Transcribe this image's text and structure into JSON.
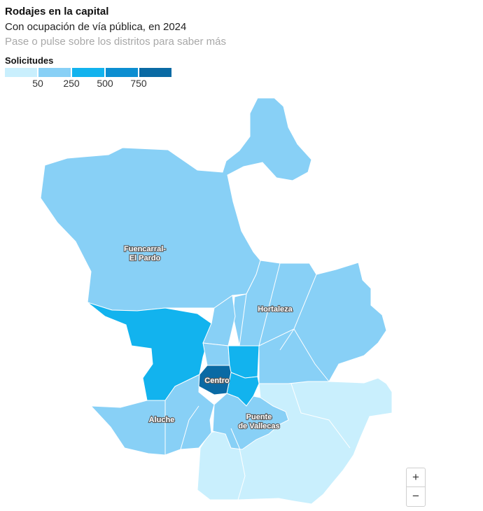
{
  "header": {
    "title": "Rodajes en la capital",
    "subtitle": "Con ocupación de vía pública, en 2024",
    "hint": "Pase o pulse sobre los distritos para saber más"
  },
  "legend": {
    "title": "Solicitudes",
    "colors": [
      "#c9effd",
      "#88d0f6",
      "#12b3ee",
      "#0c8ed1",
      "#0a6aa4"
    ],
    "ticks": [
      "50",
      "250",
      "500",
      "750"
    ]
  },
  "districts": [
    {
      "id": "fuencarral",
      "label_line1": "Fuencarral-",
      "label_line2": "El Pardo",
      "color": "#88d0f6"
    },
    {
      "id": "hortaleza",
      "label": "Hortaleza",
      "color": "#88d0f6"
    },
    {
      "id": "moncloa",
      "color": "#12b3ee"
    },
    {
      "id": "centro",
      "label": "Centro",
      "color": "#0a6aa4"
    },
    {
      "id": "retiro",
      "color": "#12b3ee"
    },
    {
      "id": "salamanca",
      "color": "#12b3ee"
    },
    {
      "id": "aluche",
      "label": "Aluche",
      "color": "#88d0f6"
    },
    {
      "id": "puente",
      "label_line1": "Puente",
      "label_line2": "de Vallecas",
      "color": "#88d0f6"
    },
    {
      "id": "southeast",
      "color": "#c9effd"
    }
  ],
  "zoom": {
    "in": "+",
    "out": "−"
  }
}
